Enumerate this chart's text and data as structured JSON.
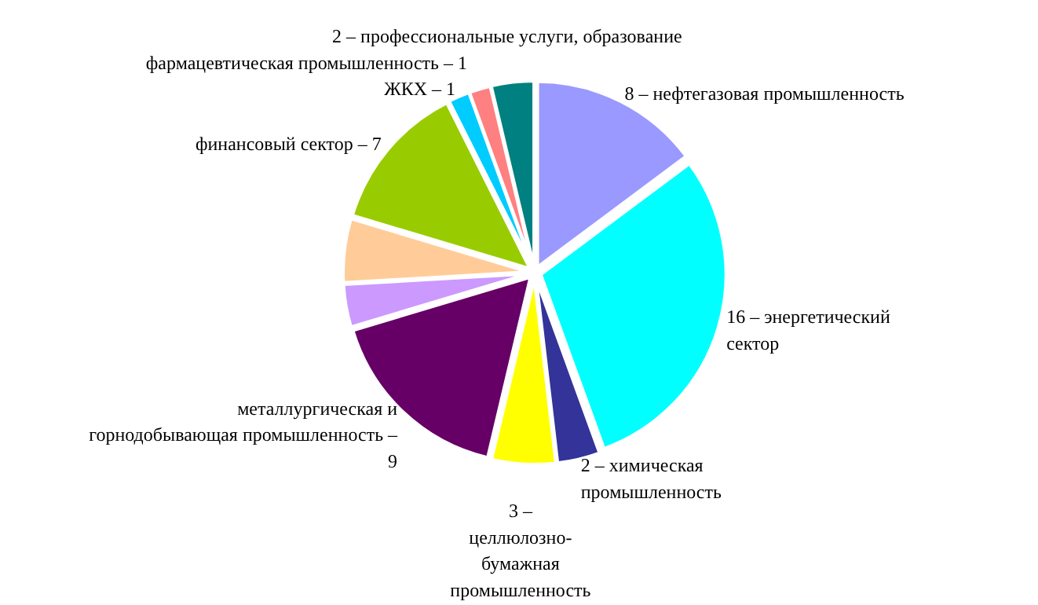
{
  "chart_data": {
    "type": "pie",
    "categories": [
      "8 – нефтегазовая промышленность",
      "16 – энергетический\nсектор",
      "2 – химическая\nпромышленность",
      "3 –\nцеллюлозно-\nбумажная\nпромышленность",
      "металлургическая и\nгорнодобывающая промышленность –\n9",
      null,
      null,
      "финансовый сектор – 7",
      "ЖКХ – 1",
      "фармацевтическая  промышленность – 1",
      "2 – профессиональные услуги, образование"
    ],
    "values": [
      8,
      16,
      2,
      3,
      9,
      2,
      3,
      7,
      1,
      1,
      2
    ],
    "colors": [
      "#9999ff",
      "#00ffff",
      "#333399",
      "#ffff00",
      "#660066",
      "#cc99ff",
      "#ffcc99",
      "#99cc00",
      "#00ccff",
      "#ff8080",
      "#008080"
    ]
  }
}
